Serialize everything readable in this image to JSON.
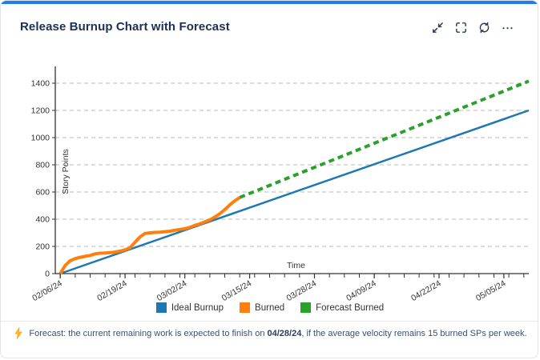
{
  "card": {
    "title": "Release Burnup Chart with Forecast",
    "accent_color": "#1f7cf4",
    "toolbar_icons": [
      "collapse-icon",
      "fullscreen-icon",
      "refresh-icon",
      "more-options-icon"
    ]
  },
  "chart_data": {
    "type": "line",
    "title": "Release Burnup Chart with Forecast",
    "xlabel": "Time",
    "ylabel": "Story Points",
    "x_axis": {
      "start": "02/05/24",
      "end": "05/10/24",
      "major_ticks": [
        "02/06/24",
        "02/19/24",
        "03/02/24",
        "03/15/24",
        "03/28/24",
        "04/09/24",
        "04/22/24",
        "05/05/24"
      ],
      "minor_tick_interval_days": 3
    },
    "y_axis": {
      "min": 0,
      "max": 1500,
      "tick_interval": 200,
      "max_tick": 1400
    },
    "grid": "horizontal-dashed",
    "legend_position": "bottom",
    "series": [
      {
        "name": "Ideal Burnup",
        "color": "#1f77b4",
        "style": "solid",
        "width": 2.5,
        "points": [
          [
            "02/06/24",
            0
          ],
          [
            "05/10/24",
            1200
          ]
        ]
      },
      {
        "name": "Burned",
        "color": "#ff7f0e",
        "style": "solid",
        "width": 4,
        "points": [
          [
            "02/06/24",
            0
          ],
          [
            "02/07/24",
            60
          ],
          [
            "02/08/24",
            95
          ],
          [
            "02/09/24",
            110
          ],
          [
            "02/10/24",
            120
          ],
          [
            "02/11/24",
            127
          ],
          [
            "02/12/24",
            133
          ],
          [
            "02/13/24",
            145
          ],
          [
            "02/14/24",
            150
          ],
          [
            "02/15/24",
            152
          ],
          [
            "02/16/24",
            155
          ],
          [
            "02/17/24",
            158
          ],
          [
            "02/18/24",
            165
          ],
          [
            "02/19/24",
            175
          ],
          [
            "02/20/24",
            190
          ],
          [
            "02/21/24",
            230
          ],
          [
            "02/22/24",
            270
          ],
          [
            "02/23/24",
            295
          ],
          [
            "02/24/24",
            300
          ],
          [
            "02/25/24",
            303
          ],
          [
            "02/26/24",
            305
          ],
          [
            "02/27/24",
            308
          ],
          [
            "02/28/24",
            312
          ],
          [
            "02/29/24",
            318
          ],
          [
            "03/01/24",
            325
          ],
          [
            "03/02/24",
            330
          ],
          [
            "03/03/24",
            340
          ],
          [
            "03/04/24",
            355
          ],
          [
            "03/05/24",
            365
          ],
          [
            "03/06/24",
            380
          ],
          [
            "03/07/24",
            395
          ],
          [
            "03/08/24",
            415
          ],
          [
            "03/09/24",
            440
          ],
          [
            "03/10/24",
            470
          ],
          [
            "03/11/24",
            505
          ],
          [
            "03/12/24",
            535
          ],
          [
            "03/13/24",
            560
          ]
        ]
      },
      {
        "name": "Forecast Burned",
        "color": "#2ca02c",
        "style": "dashed",
        "width": 4,
        "points": [
          [
            "03/13/24",
            560
          ],
          [
            "05/10/24",
            1415
          ]
        ]
      }
    ]
  },
  "legend": {
    "items": [
      {
        "label": "Ideal Burnup",
        "color": "#1f77b4"
      },
      {
        "label": "Burned",
        "color": "#ff7f0e"
      },
      {
        "label": "Forecast Burned",
        "color": "#2ca02c"
      }
    ]
  },
  "footer": {
    "icon": "lightning-icon",
    "prefix": "Forecast: the current remaining work is expected to finish on ",
    "date": "04/28/24",
    "suffix": ", if the average velocity remains 15 burned SPs per week."
  }
}
